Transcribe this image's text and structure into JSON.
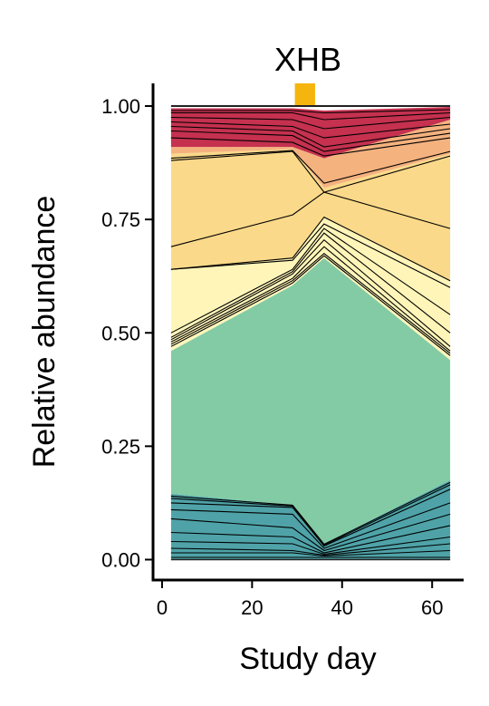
{
  "chart_data": {
    "type": "area",
    "title": "XHB",
    "xlabel": "Study day",
    "ylabel": "Relative abundance",
    "xlim": [
      -2,
      67
    ],
    "ylim": [
      -0.045,
      1.05
    ],
    "xticks": [
      0,
      20,
      40,
      60
    ],
    "yticks": [
      0.0,
      0.25,
      0.5,
      0.75,
      1.0
    ],
    "ytick_labels": [
      "0.00",
      "0.25",
      "0.50",
      "0.75",
      "1.00"
    ],
    "x": [
      2,
      29,
      36,
      64
    ],
    "grid": false,
    "legend": "none",
    "event_marker": {
      "x_start": 29.5,
      "x_end": 34,
      "color": "#F6B40F"
    },
    "layers": [
      {
        "color": "#4FA3A8",
        "top": [
          0.145,
          0.12,
          0.035,
          0.175
        ]
      },
      {
        "color": "#83CBA5",
        "top": [
          0.46,
          0.605,
          0.665,
          0.44
        ]
      },
      {
        "color": "#FFF5B9",
        "top": [
          0.64,
          0.665,
          0.755,
          0.615
        ]
      },
      {
        "color": "#FBD98A",
        "top": [
          0.895,
          0.905,
          0.82,
          0.895
        ]
      },
      {
        "color": "#F4B27F",
        "top": [
          0.91,
          0.91,
          0.885,
          0.97
        ]
      },
      {
        "color": "#C5314F",
        "top": [
          0.995,
          0.995,
          0.99,
          0.998
        ]
      }
    ],
    "series_lines": [
      [
        0.005,
        0.005,
        0.005,
        0.005
      ],
      [
        0.015,
        0.015,
        0.008,
        0.02
      ],
      [
        0.025,
        0.02,
        0.01,
        0.035
      ],
      [
        0.04,
        0.035,
        0.012,
        0.05
      ],
      [
        0.06,
        0.05,
        0.015,
        0.075
      ],
      [
        0.09,
        0.07,
        0.02,
        0.1
      ],
      [
        0.11,
        0.1,
        0.025,
        0.125
      ],
      [
        0.125,
        0.115,
        0.03,
        0.155
      ],
      [
        0.135,
        0.118,
        0.032,
        0.165
      ],
      [
        0.14,
        0.12,
        0.034,
        0.17
      ],
      [
        0.47,
        0.61,
        0.67,
        0.45
      ],
      [
        0.475,
        0.615,
        0.675,
        0.455
      ],
      [
        0.48,
        0.62,
        0.69,
        0.46
      ],
      [
        0.485,
        0.63,
        0.705,
        0.47
      ],
      [
        0.49,
        0.635,
        0.72,
        0.5
      ],
      [
        0.5,
        0.64,
        0.73,
        0.54
      ],
      [
        0.64,
        0.66,
        0.74,
        0.6
      ],
      [
        0.69,
        0.76,
        0.81,
        0.73
      ],
      [
        0.64,
        0.665,
        0.755,
        0.615
      ],
      [
        0.88,
        0.9,
        0.81,
        0.89
      ],
      [
        0.885,
        0.902,
        0.83,
        0.9
      ],
      [
        0.93,
        0.92,
        0.89,
        0.93
      ],
      [
        0.945,
        0.935,
        0.9,
        0.94
      ],
      [
        0.955,
        0.945,
        0.91,
        0.95
      ],
      [
        0.965,
        0.955,
        0.93,
        0.96
      ],
      [
        0.975,
        0.97,
        0.95,
        0.975
      ],
      [
        0.985,
        0.985,
        0.97,
        0.985
      ],
      [
        0.99,
        0.99,
        0.985,
        0.992
      ]
    ]
  }
}
